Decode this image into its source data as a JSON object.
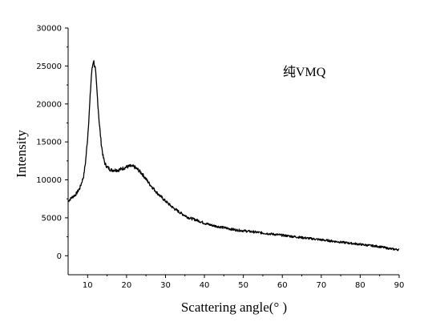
{
  "chart_data": {
    "type": "line",
    "title": "",
    "annotation": "纯VMQ",
    "xlabel": "Scattering angle(° )",
    "ylabel": "Intensity",
    "xlim": [
      5,
      90
    ],
    "ylim": [
      -2500,
      30000
    ],
    "x_ticks": [
      10,
      20,
      30,
      40,
      50,
      60,
      70,
      80,
      90
    ],
    "y_ticks": [
      0,
      5000,
      10000,
      15000,
      20000,
      25000,
      30000
    ],
    "x_tick_labels": [
      "10",
      "20",
      "30",
      "40",
      "50",
      "60",
      "70",
      "80",
      "90"
    ],
    "y_tick_labels": [
      "0",
      "5000",
      "10000",
      "15000",
      "20000",
      "25000",
      "30000"
    ],
    "grid": false,
    "legend": "none",
    "line_color": "#000000",
    "series": [
      {
        "x": [
          5,
          6,
          7,
          8,
          9,
          9.5,
          10,
          10.5,
          11,
          11.5,
          12,
          12.5,
          13,
          13.5,
          14,
          14.5,
          15,
          16,
          17,
          18,
          19,
          20,
          21,
          22,
          23,
          24,
          25,
          26,
          27,
          28,
          30,
          32,
          34,
          36,
          38,
          40,
          42,
          45,
          48,
          50,
          55,
          60,
          65,
          70,
          75,
          80,
          85,
          88,
          90
        ],
        "y": [
          7200,
          7700,
          8100,
          8900,
          10500,
          12500,
          15500,
          19500,
          24000,
          25800,
          24500,
          21000,
          17500,
          14800,
          13000,
          12100,
          11700,
          11300,
          11300,
          11300,
          11500,
          11700,
          11800,
          11700,
          11300,
          10800,
          10100,
          9400,
          8800,
          8200,
          7200,
          6300,
          5600,
          5000,
          4700,
          4300,
          4000,
          3700,
          3400,
          3300,
          3000,
          2700,
          2400,
          2100,
          1800,
          1500,
          1200,
          900,
          800
        ]
      }
    ]
  }
}
